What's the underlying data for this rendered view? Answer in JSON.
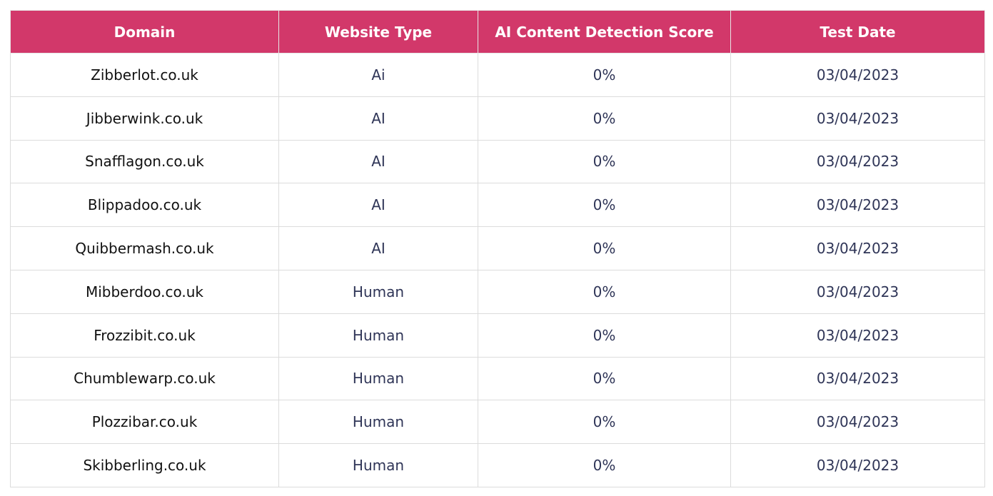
{
  "table": {
    "headers": [
      "Domain",
      "Website Type",
      "AI Content Detection Score",
      "Test Date"
    ],
    "rows": [
      [
        "Zibberlot.co.uk",
        "Ai",
        "0%",
        "03/04/2023"
      ],
      [
        "Jibberwink.co.uk",
        "AI",
        "0%",
        "03/04/2023"
      ],
      [
        "Snafflagon.co.uk",
        "AI",
        "0%",
        "03/04/2023"
      ],
      [
        "Blippadoo.co.uk",
        "AI",
        "0%",
        "03/04/2023"
      ],
      [
        "Quibbermash.co.uk",
        "AI",
        "0%",
        "03/04/2023"
      ],
      [
        "Mibberdoo.co.uk",
        "Human",
        "0%",
        "03/04/2023"
      ],
      [
        "Frozzibit.co.uk",
        "Human",
        "0%",
        "03/04/2023"
      ],
      [
        "Chumblewarp.co.uk",
        "Human",
        "0%",
        "03/04/2023"
      ],
      [
        "Plozzibar.co.uk",
        "Human",
        "0%",
        "03/04/2023"
      ],
      [
        "Skibberling.co.uk",
        "Human",
        "0%",
        "03/04/2023"
      ]
    ]
  }
}
